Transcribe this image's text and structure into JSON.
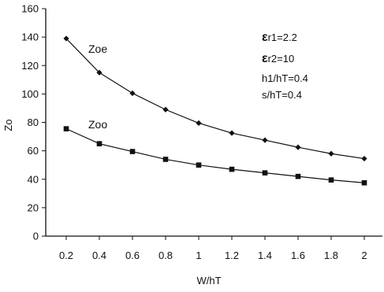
{
  "chart_data": {
    "type": "line",
    "x": [
      0.2,
      0.4,
      0.6,
      0.8,
      1,
      1.2,
      1.4,
      1.6,
      1.8,
      2
    ],
    "x_tick_labels": [
      "0.2",
      "0.4",
      "0.6",
      "0.8",
      "1",
      "1.2",
      "1.4",
      "1.6",
      "1.8",
      "2"
    ],
    "xlabel": "W/hT",
    "ylabel": "Zo",
    "ylim": [
      0,
      160
    ],
    "y_ticks": [
      0,
      20,
      40,
      60,
      80,
      100,
      120,
      140,
      160
    ],
    "grid": false,
    "series": [
      {
        "name": "Zoe",
        "marker": "diamond",
        "values": [
          139,
          115,
          100.5,
          89,
          79.5,
          72.5,
          67.5,
          62.5,
          58,
          54.5
        ]
      },
      {
        "name": "Zoo",
        "marker": "square",
        "values": [
          75.5,
          65,
          59.5,
          54,
          50,
          47,
          44.5,
          42,
          39.5,
          37.5
        ]
      }
    ],
    "annotations": {
      "er1_symbol": "ε",
      "er1_text": "r1=2.2",
      "er2_symbol": "ε",
      "er2_text": "r2=10",
      "h_ratio": "h1/hT=0.4",
      "s_ratio": "s/hT=0.4"
    }
  }
}
